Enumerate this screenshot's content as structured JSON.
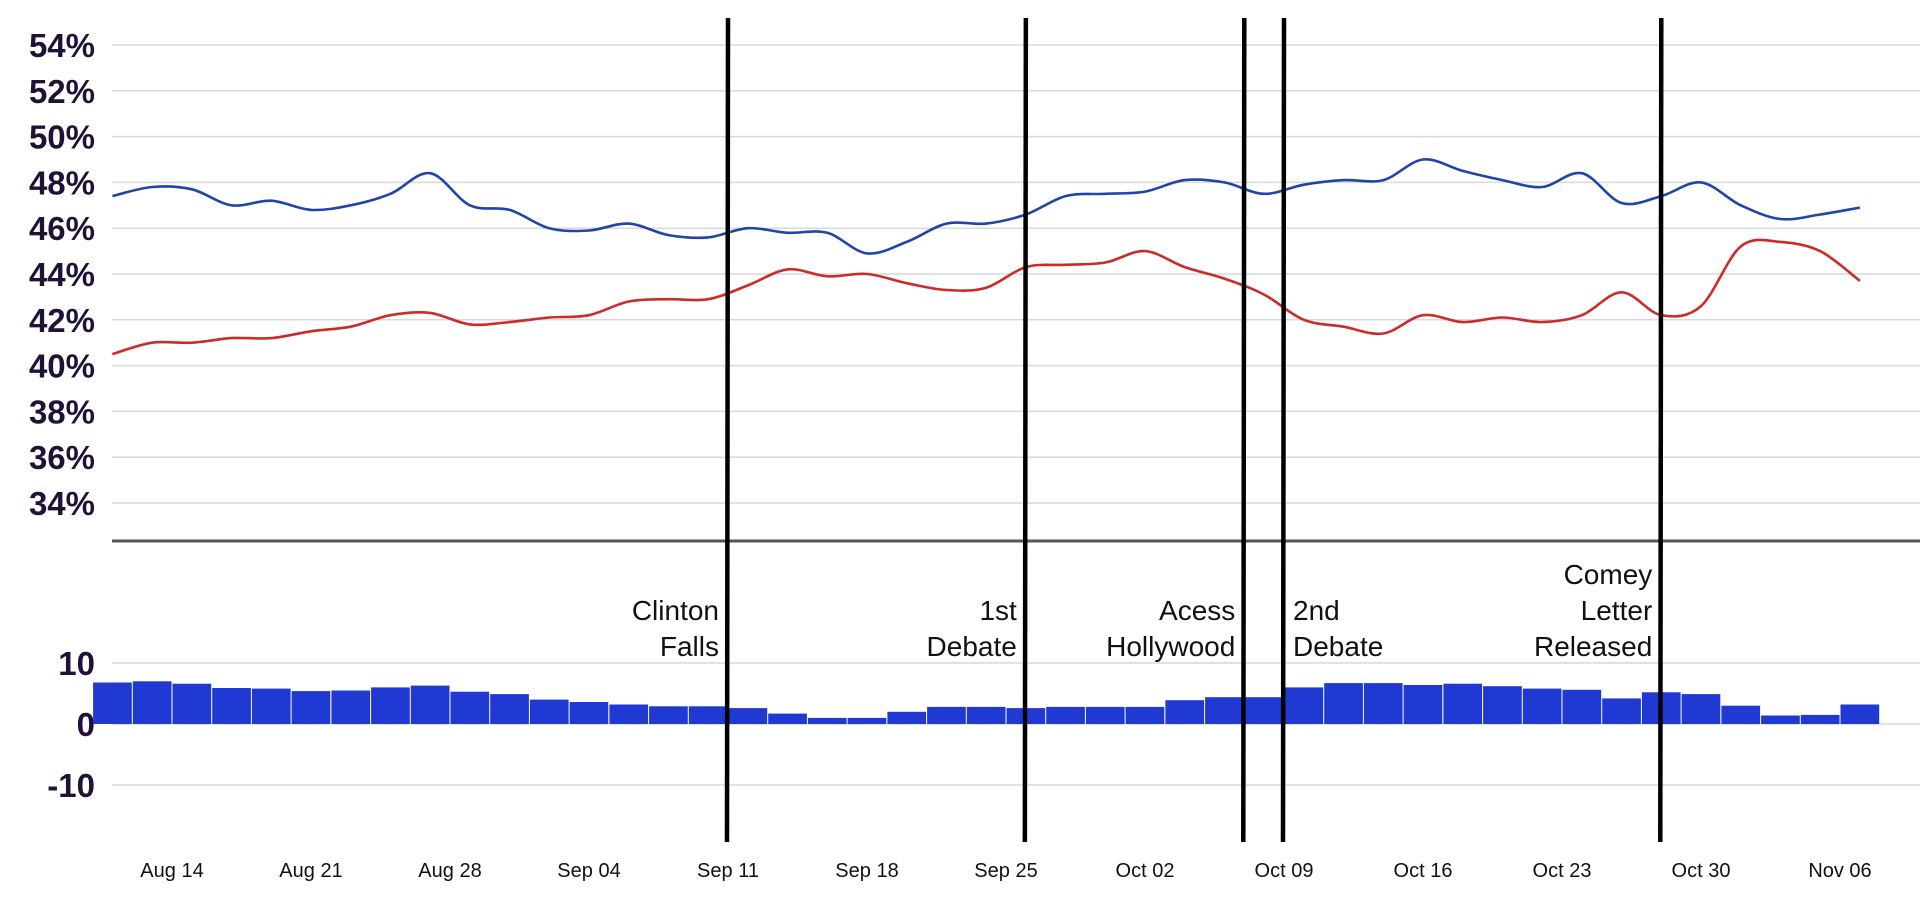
{
  "chart_data": [
    {
      "type": "line",
      "y_tick_labels": [
        "54%",
        "52%",
        "50%",
        "48%",
        "46%",
        "44%",
        "42%",
        "40%",
        "38%",
        "36%",
        "34%"
      ],
      "ylim": [
        33,
        55
      ],
      "grid": true,
      "x_tick_labels": [
        "Aug 14",
        "Aug 21",
        "Aug 28",
        "Sep 04",
        "Sep 11",
        "Sep 18",
        "Sep 25",
        "Oct 02",
        "Oct 09",
        "Oct 16",
        "Oct 23",
        "Oct 30",
        "Nov 06"
      ],
      "colors": {
        "series_1": "#2244a8",
        "series_2": "#cc2b2b"
      },
      "series": [
        {
          "x": [
            "Aug 11",
            "Aug 13",
            "Aug 15",
            "Aug 17",
            "Aug 19",
            "Aug 21",
            "Aug 23",
            "Aug 25",
            "Aug 27",
            "Aug 29",
            "Aug 31",
            "Sep 02",
            "Sep 04",
            "Sep 06",
            "Sep 08",
            "Sep 10",
            "Sep 12",
            "Sep 14",
            "Sep 16",
            "Sep 18",
            "Sep 20",
            "Sep 22",
            "Sep 24",
            "Sep 26",
            "Sep 28",
            "Sep 30",
            "Oct 02",
            "Oct 04",
            "Oct 06",
            "Oct 08",
            "Oct 10",
            "Oct 12",
            "Oct 14",
            "Oct 16",
            "Oct 18",
            "Oct 20",
            "Oct 22",
            "Oct 24",
            "Oct 26",
            "Oct 28",
            "Oct 30",
            "Nov 01",
            "Nov 03",
            "Nov 05",
            "Nov 07"
          ],
          "values": [
            47.4,
            47.8,
            47.7,
            47.0,
            47.2,
            46.8,
            47.0,
            47.5,
            48.4,
            47.0,
            46.8,
            46.0,
            45.9,
            46.2,
            45.7,
            45.6,
            46.0,
            45.8,
            45.8,
            44.9,
            45.4,
            46.2,
            46.2,
            46.6,
            47.4,
            47.5,
            47.6,
            48.1,
            48.0,
            47.5,
            47.9,
            48.1,
            48.1,
            49.0,
            48.5,
            48.1,
            47.8,
            48.4,
            47.1,
            47.4,
            48.0,
            47.0,
            46.4,
            46.6,
            46.9
          ]
        },
        {
          "x": [
            "Aug 11",
            "Aug 13",
            "Aug 15",
            "Aug 17",
            "Aug 19",
            "Aug 21",
            "Aug 23",
            "Aug 25",
            "Aug 27",
            "Aug 29",
            "Aug 31",
            "Sep 02",
            "Sep 04",
            "Sep 06",
            "Sep 08",
            "Sep 10",
            "Sep 12",
            "Sep 14",
            "Sep 16",
            "Sep 18",
            "Sep 20",
            "Sep 22",
            "Sep 24",
            "Sep 26",
            "Sep 28",
            "Sep 30",
            "Oct 02",
            "Oct 04",
            "Oct 06",
            "Oct 08",
            "Oct 10",
            "Oct 12",
            "Oct 14",
            "Oct 16",
            "Oct 18",
            "Oct 20",
            "Oct 22",
            "Oct 24",
            "Oct 26",
            "Oct 28",
            "Oct 30",
            "Nov 01",
            "Nov 03",
            "Nov 05",
            "Nov 07"
          ],
          "values": [
            40.5,
            41.0,
            41.0,
            41.2,
            41.2,
            41.5,
            41.7,
            42.2,
            42.3,
            41.8,
            41.9,
            42.1,
            42.2,
            42.8,
            42.9,
            42.9,
            43.5,
            44.2,
            43.9,
            44.0,
            43.6,
            43.3,
            43.4,
            44.3,
            44.4,
            44.5,
            45.0,
            44.3,
            43.8,
            43.1,
            42.0,
            41.7,
            41.4,
            42.2,
            41.9,
            42.1,
            41.9,
            42.2,
            43.2,
            42.2,
            42.6,
            45.2,
            45.4,
            45.0,
            43.7
          ]
        }
      ]
    },
    {
      "type": "bar",
      "y_tick_labels": [
        "10",
        "0",
        "-10"
      ],
      "ylim": [
        -15,
        15
      ],
      "grid": true,
      "colors": {
        "bar": "#2039d3"
      },
      "x": [
        "Aug 11",
        "Aug 13",
        "Aug 15",
        "Aug 17",
        "Aug 19",
        "Aug 21",
        "Aug 23",
        "Aug 25",
        "Aug 27",
        "Aug 29",
        "Aug 31",
        "Sep 02",
        "Sep 04",
        "Sep 06",
        "Sep 08",
        "Sep 10",
        "Sep 12",
        "Sep 14",
        "Sep 16",
        "Sep 18",
        "Sep 20",
        "Sep 22",
        "Sep 24",
        "Sep 26",
        "Sep 28",
        "Sep 30",
        "Oct 02",
        "Oct 04",
        "Oct 06",
        "Oct 08",
        "Oct 10",
        "Oct 12",
        "Oct 14",
        "Oct 16",
        "Oct 18",
        "Oct 20",
        "Oct 22",
        "Oct 24",
        "Oct 26",
        "Oct 28",
        "Oct 30",
        "Nov 01",
        "Nov 03",
        "Nov 05",
        "Nov 07"
      ],
      "values": [
        6.8,
        7.0,
        6.6,
        5.9,
        5.8,
        5.4,
        5.5,
        6.0,
        6.3,
        5.3,
        4.9,
        4.0,
        3.6,
        3.2,
        2.9,
        2.9,
        2.6,
        1.7,
        1.0,
        1.0,
        2.0,
        2.8,
        2.8,
        2.6,
        2.8,
        2.8,
        2.8,
        3.9,
        4.4,
        4.4,
        6.0,
        6.7,
        6.7,
        6.4,
        6.6,
        6.2,
        5.8,
        5.6,
        4.2,
        5.2,
        4.9,
        3.0,
        1.4,
        1.5,
        3.2
      ]
    }
  ],
  "annotations": [
    {
      "lines": [
        "Clinton",
        "Falls"
      ],
      "date": "Sep 11"
    },
    {
      "lines": [
        "1st",
        "Debate"
      ],
      "date": "Sep 26"
    },
    {
      "lines": [
        "Acess",
        "Hollywood"
      ],
      "date": "Oct 07"
    },
    {
      "lines": [
        "2nd",
        "Debate"
      ],
      "date": "Oct 09"
    },
    {
      "lines": [
        "Comey",
        "Letter",
        "Released"
      ],
      "date": "Oct 28"
    }
  ]
}
